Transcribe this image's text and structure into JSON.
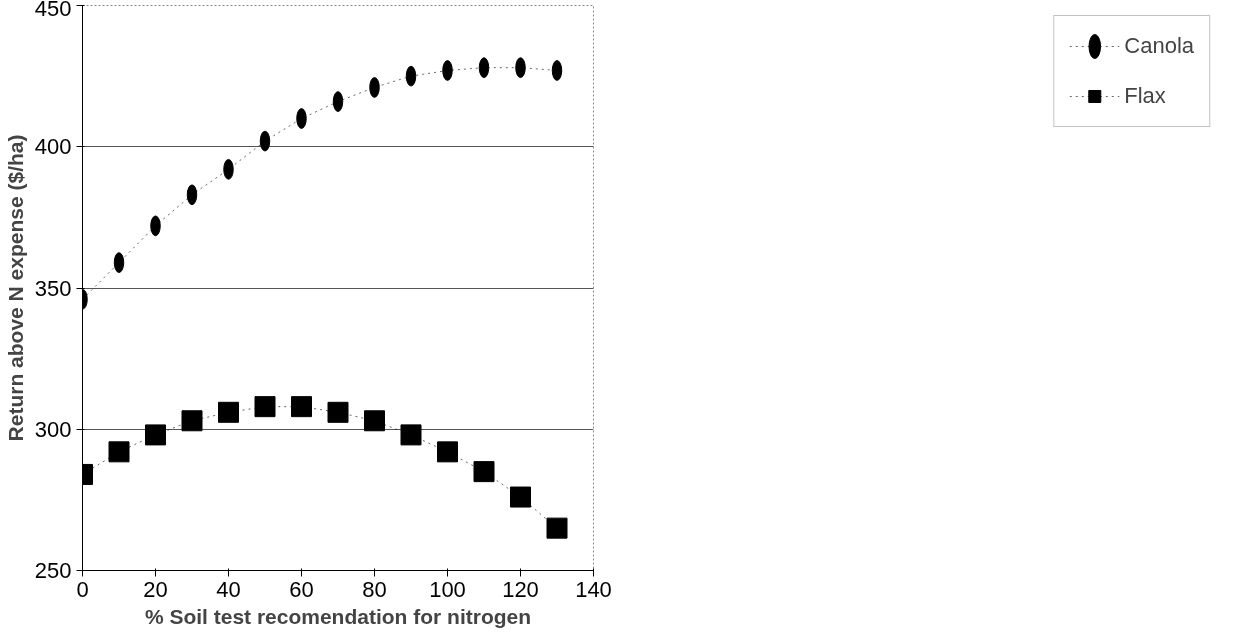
{
  "chart_data": {
    "type": "line",
    "xlabel": "% Soil test recomendation for nitrogen",
    "ylabel": "Return above N expense ($/ha)",
    "x": [
      0,
      10,
      20,
      30,
      40,
      50,
      60,
      70,
      80,
      90,
      100,
      110,
      120,
      130
    ],
    "xlim": [
      0,
      140
    ],
    "xticks": [
      0,
      20,
      40,
      60,
      80,
      100,
      120,
      140
    ],
    "ylim": [
      250,
      450
    ],
    "yticks": [
      250,
      300,
      350,
      400,
      450
    ],
    "grid": "y",
    "legend": "right",
    "line_style": "dotted",
    "series": [
      {
        "name": "Canola",
        "color": "#000000",
        "marker": "circle",
        "values": [
          346,
          359,
          372,
          383,
          392,
          402,
          410,
          416,
          421,
          425,
          427,
          428,
          428,
          427
        ]
      },
      {
        "name": "Flax",
        "color": "#000000",
        "marker": "square",
        "values": [
          284,
          292,
          298,
          303,
          306,
          308,
          308,
          306,
          303,
          298,
          292,
          285,
          276,
          265
        ]
      }
    ]
  }
}
